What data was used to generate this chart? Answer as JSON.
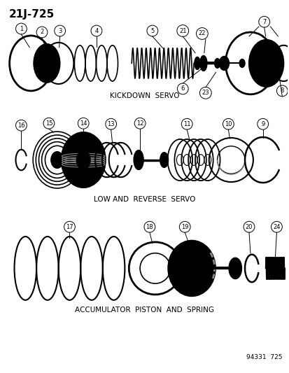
{
  "title": "21J-725",
  "section1_label": "KICKDOWN  SERVO",
  "section2_label": "LOW AND  REVERSE  SERVO",
  "section3_label": "ACCUMULATOR  PISTON  AND  SPRING",
  "footer": "94331  725",
  "bg_color": "#ffffff",
  "line_color": "#000000",
  "font_color": "#000000"
}
